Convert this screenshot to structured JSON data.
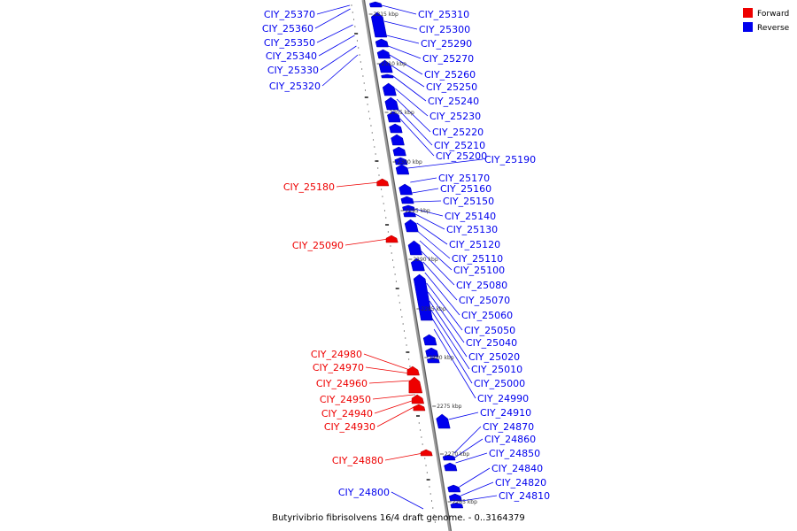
{
  "caption": "Butyrivibrio fibrisolvens 16/4 draft genome. - 0..3164379",
  "legend": {
    "items": [
      {
        "label": "Forward",
        "color": "#ee0000"
      },
      {
        "label": "Reverse",
        "color": "#0000ee"
      }
    ]
  },
  "colors": {
    "forward": "#ee0000",
    "reverse": "#0000ee",
    "backbone": "#808080"
  },
  "ticks": [
    "2315 kbp",
    "2310 kbp",
    "2305 kbp",
    "2300 kbp",
    "2295 kbp",
    "2290 kbp",
    "2285 kbp",
    "2280 kbp",
    "2275 kbp",
    "2270 kbp",
    "2265 kbp"
  ],
  "genes_left_reverse": [
    "CIY_25370",
    "CIY_25360",
    "CIY_25350",
    "CIY_25340",
    "CIY_25330",
    "CIY_25320",
    "CIY_24800"
  ],
  "genes_left_forward": [
    "CIY_25180",
    "CIY_25090",
    "CIY_24980",
    "CIY_24970",
    "CIY_24960",
    "CIY_24950",
    "CIY_24940",
    "CIY_24930",
    "CIY_24880"
  ],
  "genes_right_reverse": [
    "CIY_25310",
    "CIY_25300",
    "CIY_25290",
    "CIY_25270",
    "CIY_25260",
    "CIY_25250",
    "CIY_25240",
    "CIY_25230",
    "CIY_25220",
    "CIY_25210",
    "CIY_25200",
    "CIY_25190",
    "CIY_25170",
    "CIY_25160",
    "CIY_25150",
    "CIY_25140",
    "CIY_25130",
    "CIY_25120",
    "CIY_25110",
    "CIY_25100",
    "CIY_25080",
    "CIY_25070",
    "CIY_25060",
    "CIY_25050",
    "CIY_25040",
    "CIY_25020",
    "CIY_25010",
    "CIY_25000",
    "CIY_24990",
    "CIY_24910",
    "CIY_24870",
    "CIY_24860",
    "CIY_24850",
    "CIY_24840",
    "CIY_24820",
    "CIY_24810"
  ]
}
